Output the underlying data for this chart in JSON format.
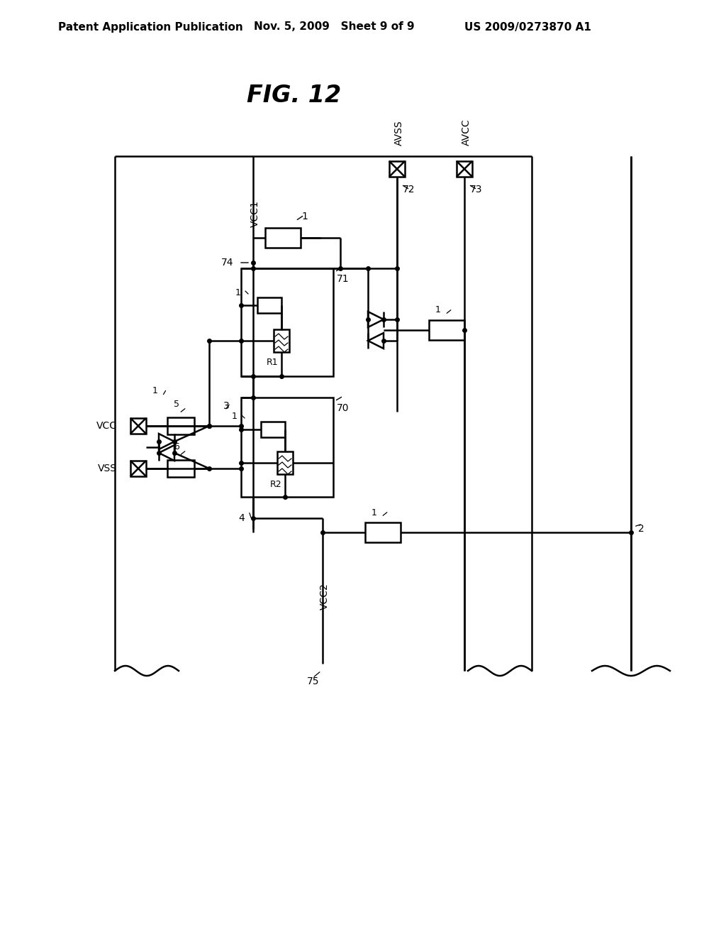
{
  "bg_color": "#ffffff",
  "line_color": "#000000",
  "header_left": "Patent Application Publication",
  "header_mid": "Nov. 5, 2009   Sheet 9 of 9",
  "header_right": "US 2009/0273870 A1",
  "title": "FIG. 12"
}
